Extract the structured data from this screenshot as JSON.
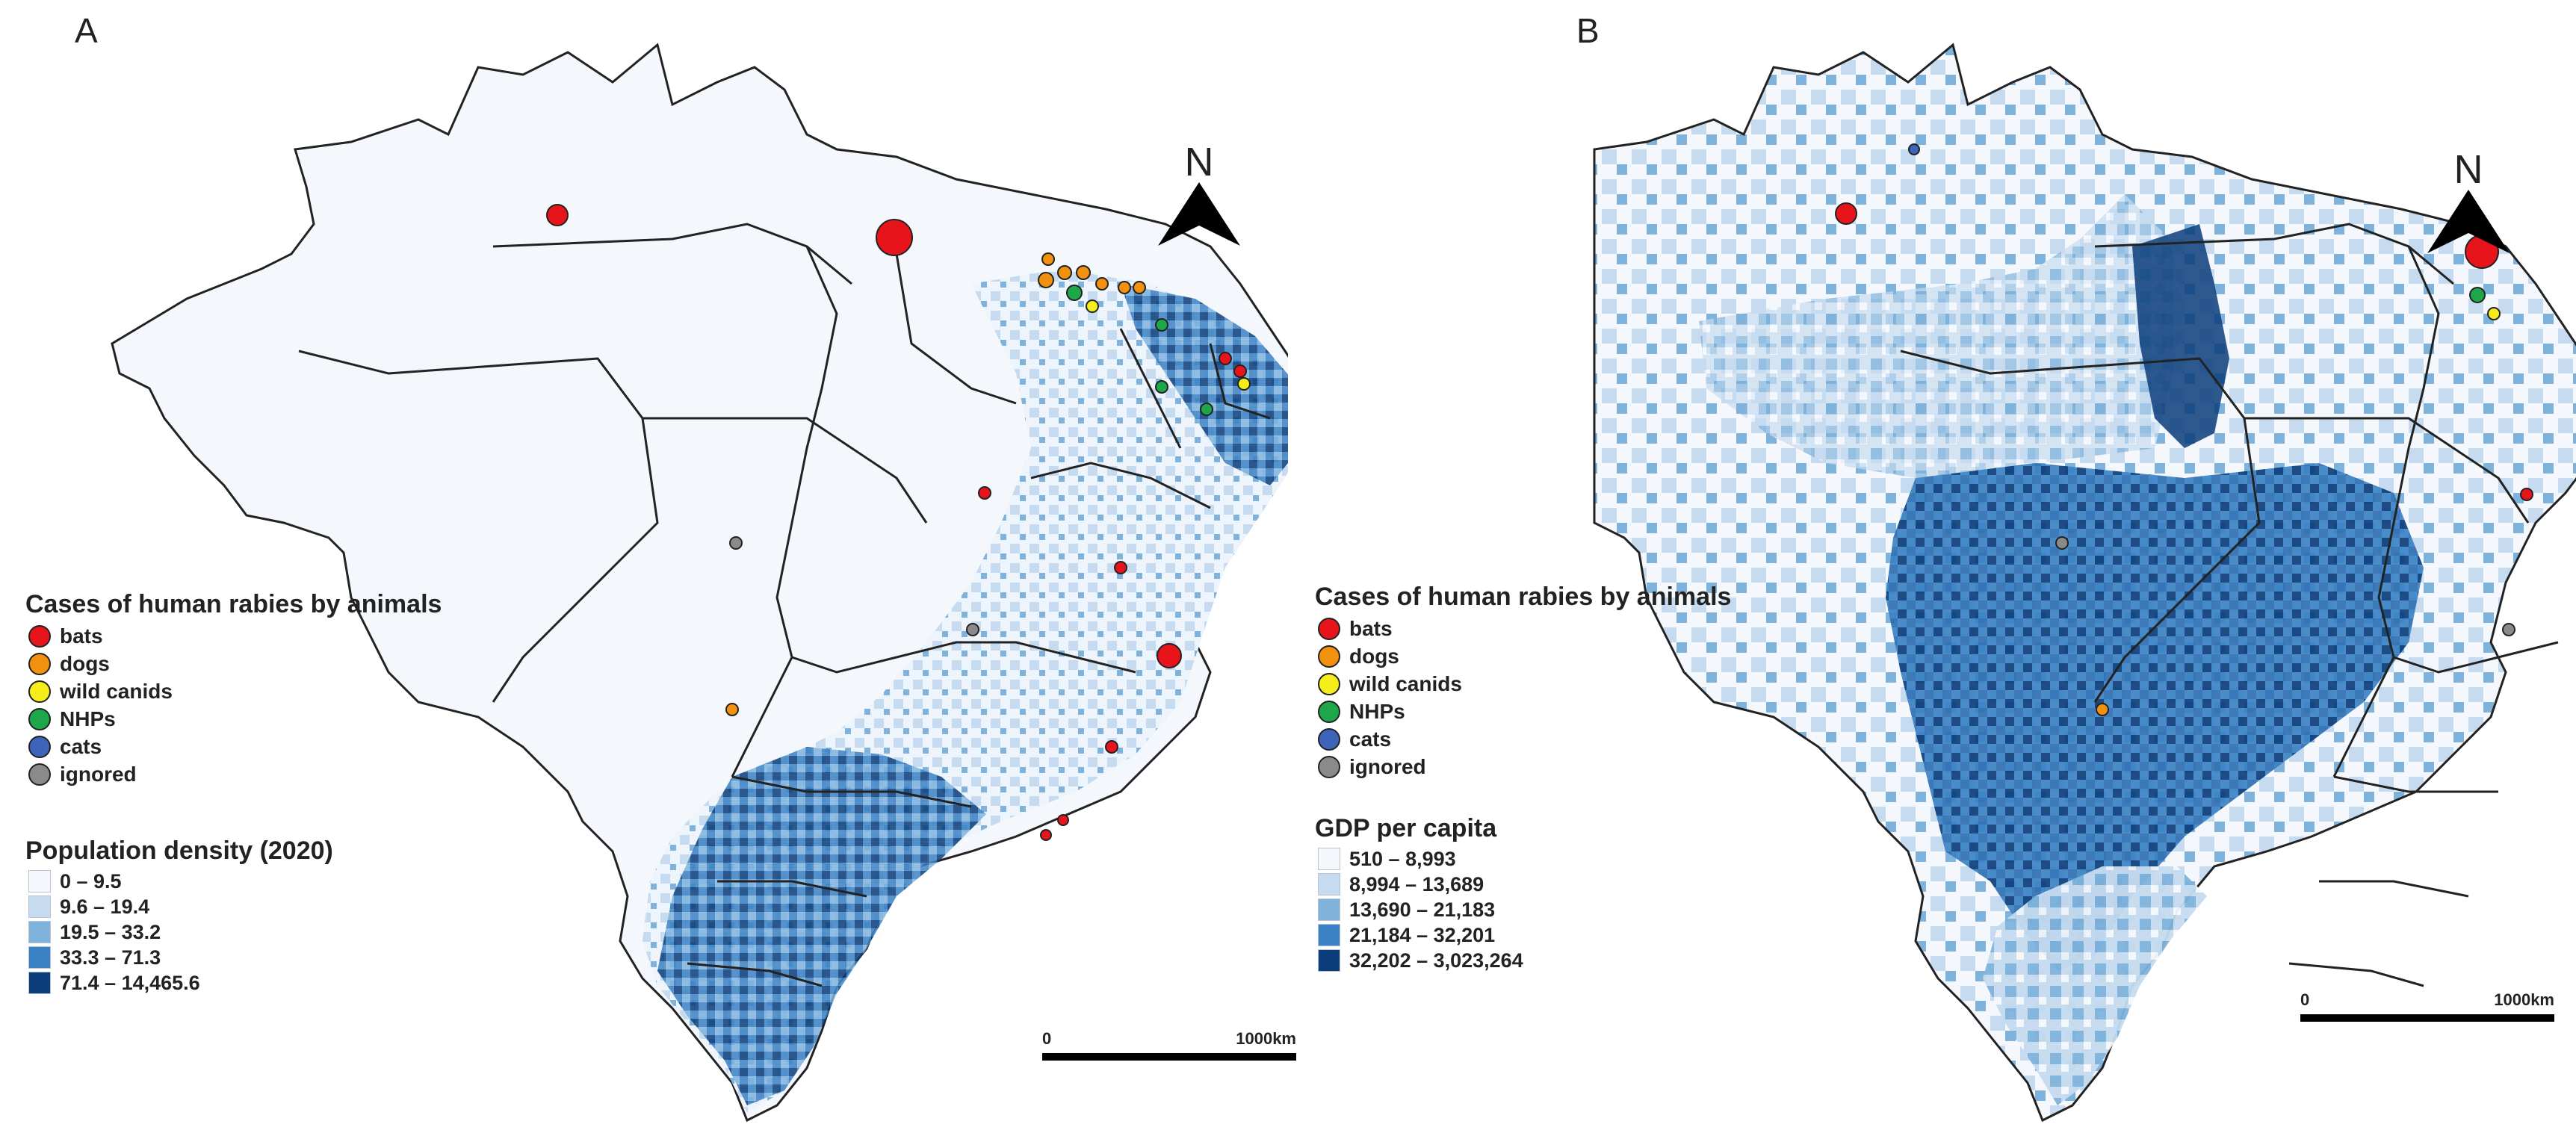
{
  "panels": [
    {
      "letter": "A",
      "legend_cases": {
        "title": "Cases of human rabies by animals",
        "items": [
          {
            "label": "bats",
            "color": "#e8141b"
          },
          {
            "label": "dogs",
            "color": "#f2900f"
          },
          {
            "label": "wild canids",
            "color": "#f5ee1b"
          },
          {
            "label": "NHPs",
            "color": "#1ea64a"
          },
          {
            "label": "cats",
            "color": "#3d64b8"
          },
          {
            "label": "ignored",
            "color": "#8a8a8a"
          }
        ]
      },
      "legend_choropleth": {
        "title": "Population density (2020)",
        "classes": [
          {
            "label": "0 – 9.5",
            "color": "#f4f8fd"
          },
          {
            "label": "9.6 – 19.4",
            "color": "#c6dbef"
          },
          {
            "label": "19.5 – 33.2",
            "color": "#7fb3dc"
          },
          {
            "label": "33.3 – 71.3",
            "color": "#3b82c4"
          },
          {
            "label": "71.4 – 14,465.6",
            "color": "#0b3d7a"
          }
        ]
      },
      "north": "N",
      "scale": {
        "start": "0",
        "end": "1000km"
      }
    },
    {
      "letter": "B",
      "legend_cases": {
        "title": "Cases of human rabies by animals",
        "items": [
          {
            "label": "bats",
            "color": "#e8141b"
          },
          {
            "label": "dogs",
            "color": "#f2900f"
          },
          {
            "label": "wild canids",
            "color": "#f5ee1b"
          },
          {
            "label": "NHPs",
            "color": "#1ea64a"
          },
          {
            "label": "cats",
            "color": "#3d64b8"
          },
          {
            "label": "ignored",
            "color": "#8a8a8a"
          }
        ]
      },
      "legend_choropleth": {
        "title": "GDP per capita",
        "classes": [
          {
            "label": "510 – 8,993",
            "color": "#f4f8fd"
          },
          {
            "label": "8,994 – 13,689",
            "color": "#c6dbef"
          },
          {
            "label": "13,690 – 21,183",
            "color": "#7fb3dc"
          },
          {
            "label": "21,184 – 32,201",
            "color": "#3b82c4"
          },
          {
            "label": "32,202 – 3,023,264",
            "color": "#0b3d7a"
          }
        ]
      },
      "north": "N",
      "scale": {
        "start": "0",
        "end": "1000km"
      }
    }
  ]
}
